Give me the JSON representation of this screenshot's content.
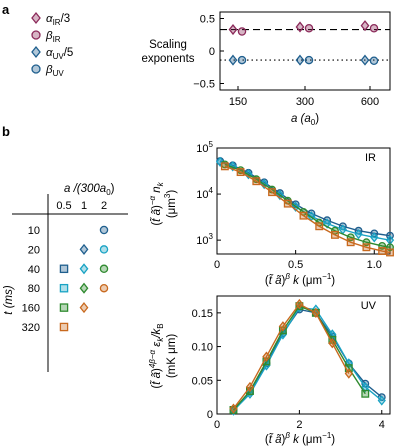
{
  "panel_labels": {
    "a": "a",
    "b": "b"
  },
  "legend": [
    {
      "label": "α_IR/3",
      "color": "#8b2a5a",
      "marker": "diamond"
    },
    {
      "label": "β_IR",
      "color": "#8b2a5a",
      "marker": "circle"
    },
    {
      "label": "α_UV/5",
      "color": "#1f5f8e",
      "marker": "diamond"
    },
    {
      "label": "β_UV",
      "color": "#1f5f8e",
      "marker": "circle"
    }
  ],
  "table": {
    "title": "a / (300 a0)",
    "row_header": "t (ms)",
    "columns": [
      "0.5",
      "1",
      "2"
    ],
    "rows": [
      "10",
      "20",
      "40",
      "80",
      "160",
      "320"
    ],
    "column_colors": {
      "0.5": "#1a74b8",
      "1": "#1a74b8",
      "2": "#1a74b8"
    },
    "cells": [
      [
        "",
        "",
        "circle:#1f5f8e"
      ],
      [
        "",
        "diamond:#1f5f8e",
        "circle:#19a3c4"
      ],
      [
        "square:#1f5f8e",
        "diamond:#19a3c4",
        "circle:#2f8a2f"
      ],
      [
        "square:#19a3c4",
        "diamond:#2f8a2f",
        "circle:#c8691e"
      ],
      [
        "square:#2f8a2f",
        "diamond:#c8691e",
        ""
      ],
      [
        "square:#c8691e",
        "",
        ""
      ]
    ]
  },
  "chart_data": [
    {
      "type": "scatter",
      "ylabel": "Scaling exponents",
      "xlabel": "a (a0)",
      "x_ticks": [
        "150",
        "300",
        "600"
      ],
      "y_ticks": [
        "0.5",
        "0",
        "-0.5"
      ],
      "ylim": [
        -0.6,
        0.6
      ],
      "reference_lines": [
        {
          "y": 0.33,
          "style": "dashed"
        },
        {
          "y": -0.14,
          "style": "dotted"
        }
      ],
      "series": [
        {
          "name": "α_IR/3",
          "x": [
            "150",
            "300",
            "600"
          ],
          "y": [
            0.33,
            0.37,
            0.39
          ],
          "color": "#8b2a5a",
          "marker": "diamond"
        },
        {
          "name": "β_IR",
          "x": [
            "150",
            "300",
            "600"
          ],
          "y": [
            0.3,
            0.35,
            0.35
          ],
          "color": "#8b2a5a",
          "marker": "circle"
        },
        {
          "name": "α_UV/5",
          "x": [
            "150",
            "300",
            "600"
          ],
          "y": [
            -0.14,
            -0.14,
            -0.14
          ],
          "color": "#1f5f8e",
          "marker": "diamond"
        },
        {
          "name": "β_UV",
          "x": [
            "150",
            "300",
            "600"
          ],
          "y": [
            -0.14,
            -0.14,
            -0.15
          ],
          "color": "#1f5f8e",
          "marker": "circle"
        }
      ]
    },
    {
      "type": "line",
      "tag": "IR",
      "xlabel": "(t̃ ã)^β k (μm⁻¹)",
      "ylabel": "(t̃ ã)^−α n_k (μm³)",
      "y_scale": "log",
      "xlim": [
        0,
        1.1
      ],
      "ylim": [
        500,
        100000
      ],
      "x_ticks": [
        "0",
        "0.5",
        "1.0"
      ],
      "y_ticks": [
        "10^5",
        "10^4",
        "10^3"
      ],
      "series": [
        {
          "color": "#1f5f8e",
          "marker": "circle",
          "x": [
            0.02,
            0.1,
            0.2,
            0.3,
            0.4,
            0.5,
            0.6,
            0.7,
            0.8,
            0.9,
            1.0,
            1.1
          ],
          "y": [
            52000,
            42000,
            29000,
            18000,
            10500,
            6000,
            3800,
            2700,
            2000,
            1600,
            1400,
            1250
          ]
        },
        {
          "color": "#19a3c4",
          "marker": "diamond",
          "x": [
            0.02,
            0.1,
            0.2,
            0.3,
            0.4,
            0.5,
            0.6,
            0.7,
            0.8,
            0.9,
            1.0,
            1.1
          ],
          "y": [
            50000,
            40000,
            27000,
            16500,
            9500,
            5300,
            3300,
            2300,
            1700,
            1350,
            1150,
            1000
          ]
        },
        {
          "color": "#2f8a2f",
          "marker": "circle",
          "x": [
            0.05,
            0.15,
            0.25,
            0.35,
            0.45,
            0.55,
            0.65,
            0.75,
            0.85,
            0.95,
            1.05,
            1.1
          ],
          "y": [
            44000,
            33000,
            21000,
            12500,
            7200,
            4100,
            2400,
            1600,
            1150,
            900,
            750,
            700
          ]
        },
        {
          "color": "#c8691e",
          "marker": "square",
          "x": [
            0.05,
            0.15,
            0.25,
            0.35,
            0.45,
            0.55,
            0.65,
            0.75,
            0.85,
            0.95,
            1.05,
            1.1
          ],
          "y": [
            40000,
            30000,
            19000,
            11000,
            6200,
            3400,
            2000,
            1300,
            900,
            700,
            580,
            540
          ]
        }
      ]
    },
    {
      "type": "line",
      "tag": "UV",
      "xlabel": "(t̃ ã)^β k (μm⁻¹)",
      "ylabel": "(t̃ ã)^(4β−α) ε_k / k_B (mK μm)",
      "xlim": [
        0,
        4.2
      ],
      "ylim": [
        0,
        0.175
      ],
      "x_ticks": [
        "0",
        "2",
        "4"
      ],
      "y_ticks": [
        "0",
        "0.05",
        "0.10",
        "0.15"
      ],
      "series": [
        {
          "color": "#1f5f8e",
          "marker": "circle",
          "x": [
            0.4,
            0.8,
            1.2,
            1.6,
            2.0,
            2.4,
            2.8,
            3.2,
            3.6,
            4.0
          ],
          "y": [
            0.006,
            0.033,
            0.075,
            0.12,
            0.155,
            0.15,
            0.115,
            0.075,
            0.045,
            0.025
          ]
        },
        {
          "color": "#19a3c4",
          "marker": "diamond",
          "x": [
            0.4,
            0.8,
            1.2,
            1.6,
            2.0,
            2.4,
            2.8,
            3.2,
            3.6,
            4.0
          ],
          "y": [
            0.005,
            0.03,
            0.072,
            0.118,
            0.158,
            0.155,
            0.118,
            0.075,
            0.04,
            0.02
          ]
        },
        {
          "color": "#2f8a2f",
          "marker": "square",
          "x": [
            0.4,
            0.8,
            1.2,
            1.6,
            2.0,
            2.4,
            2.8,
            3.2,
            3.6
          ],
          "y": [
            0.006,
            0.034,
            0.078,
            0.124,
            0.16,
            0.15,
            0.11,
            0.068,
            0.03
          ]
        },
        {
          "color": "#c8691e",
          "marker": "diamond",
          "x": [
            0.4,
            0.8,
            1.2,
            1.6,
            2.0,
            2.4,
            2.8,
            3.2
          ],
          "y": [
            0.008,
            0.04,
            0.085,
            0.13,
            0.163,
            0.15,
            0.105,
            0.06
          ]
        }
      ]
    }
  ]
}
